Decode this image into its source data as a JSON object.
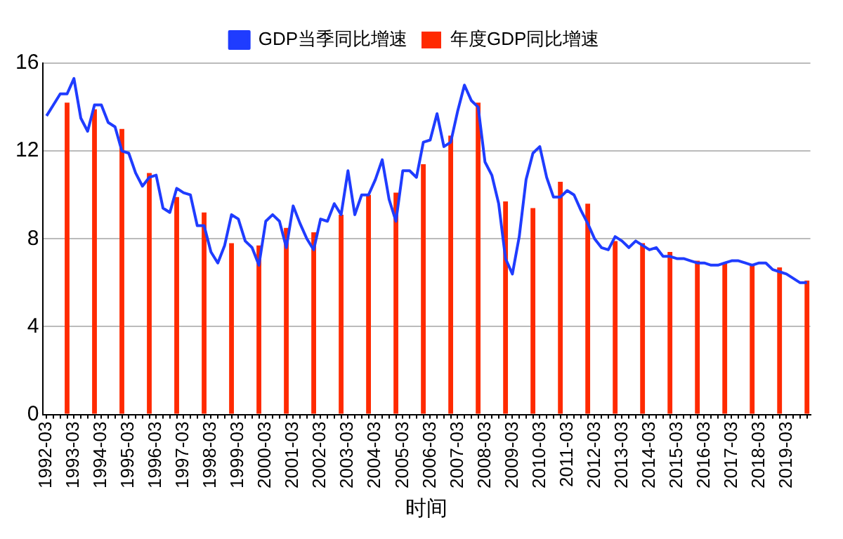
{
  "chart_data": {
    "type": "bar",
    "xlabel": "时间",
    "categories": [
      "1992-03",
      null,
      null,
      null,
      "1993-03",
      null,
      null,
      null,
      "1994-03",
      null,
      null,
      null,
      "1995-03",
      null,
      null,
      null,
      "1996-03",
      null,
      null,
      null,
      "1997-03",
      null,
      null,
      null,
      "1998-03",
      null,
      null,
      null,
      "1999-03",
      null,
      null,
      null,
      "2000-03",
      null,
      null,
      null,
      "2001-03",
      null,
      null,
      null,
      "2002-03",
      null,
      null,
      null,
      "2003-03",
      null,
      null,
      null,
      "2004-03",
      null,
      null,
      null,
      "2005-03",
      null,
      null,
      null,
      "2006-03",
      null,
      null,
      null,
      "2007-03",
      null,
      null,
      null,
      "2008-03",
      null,
      null,
      null,
      "2009-03",
      null,
      null,
      null,
      "2010-03",
      null,
      null,
      null,
      "2011-03",
      null,
      null,
      null,
      "2012-03",
      null,
      null,
      null,
      "2013-03",
      null,
      null,
      null,
      "2014-03",
      null,
      null,
      null,
      "2015-03",
      null,
      null,
      null,
      "2016-03",
      null,
      null,
      null,
      "2017-03",
      null,
      null,
      null,
      "2018-03",
      null,
      null,
      null,
      "2019-03",
      null,
      null,
      null
    ],
    "series": [
      {
        "name": "GDP当季同比增速",
        "type": "line",
        "color": "#1f3cff",
        "values": [
          13.6,
          14.1,
          14.6,
          14.6,
          15.3,
          13.5,
          12.9,
          14.1,
          14.1,
          13.3,
          13.1,
          12.0,
          11.9,
          11.0,
          10.4,
          10.8,
          10.9,
          9.4,
          9.2,
          10.3,
          10.1,
          10.0,
          8.6,
          8.6,
          7.4,
          6.9,
          7.7,
          9.1,
          8.9,
          7.9,
          7.6,
          6.8,
          8.8,
          9.1,
          8.8,
          7.6,
          9.5,
          8.7,
          8.0,
          7.5,
          8.9,
          8.8,
          9.6,
          9.1,
          11.1,
          9.1,
          10.0,
          10.0,
          10.7,
          11.6,
          9.8,
          8.8,
          11.1,
          11.1,
          10.8,
          12.4,
          12.5,
          13.7,
          12.2,
          12.4,
          13.8,
          15.0,
          14.3,
          14.0,
          11.5,
          10.9,
          9.6,
          7.1,
          6.4,
          8.1,
          10.7,
          11.9,
          12.2,
          10.8,
          9.9,
          9.9,
          10.2,
          10.0,
          9.3,
          8.7,
          8.0,
          7.6,
          7.5,
          8.1,
          7.9,
          7.6,
          7.9,
          7.7,
          7.5,
          7.6,
          7.2,
          7.2,
          7.1,
          7.1,
          7.0,
          6.9,
          6.9,
          6.8,
          6.8,
          6.9,
          7.0,
          7.0,
          6.9,
          6.8,
          6.9,
          6.9,
          6.6,
          6.5,
          6.4,
          6.2,
          6.0,
          6.0
        ]
      },
      {
        "name": "年度GDP同比增速",
        "color": "#ff2a00",
        "values": [
          null,
          null,
          null,
          14.2,
          null,
          null,
          null,
          13.9,
          null,
          null,
          null,
          13.0,
          null,
          null,
          null,
          11.0,
          null,
          null,
          null,
          9.9,
          null,
          null,
          null,
          9.2,
          null,
          null,
          null,
          7.8,
          null,
          null,
          null,
          7.7,
          null,
          null,
          null,
          8.5,
          null,
          null,
          null,
          8.3,
          null,
          null,
          null,
          9.1,
          null,
          null,
          null,
          10.0,
          null,
          null,
          null,
          10.1,
          null,
          null,
          null,
          11.4,
          null,
          null,
          null,
          12.7,
          null,
          null,
          null,
          14.2,
          null,
          null,
          null,
          9.7,
          null,
          null,
          null,
          9.4,
          null,
          null,
          null,
          10.6,
          null,
          null,
          null,
          9.6,
          null,
          null,
          null,
          7.9,
          null,
          null,
          null,
          7.8,
          null,
          null,
          null,
          7.4,
          null,
          null,
          null,
          7.0,
          null,
          null,
          null,
          6.9,
          null,
          null,
          null,
          6.8,
          null,
          null,
          null,
          6.7,
          null,
          null,
          null,
          6.1
        ]
      }
    ],
    "ylim": [
      0,
      16
    ],
    "yticks": [
      0,
      4,
      8,
      12,
      16
    ],
    "grid": "y",
    "legend": "top"
  }
}
